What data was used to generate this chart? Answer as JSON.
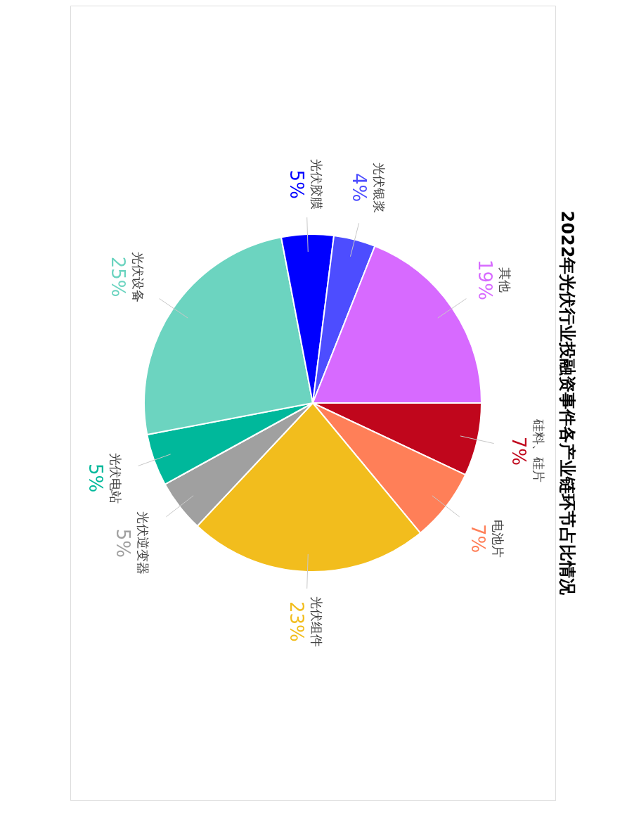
{
  "chart_data": {
    "type": "pie",
    "title": "2022年光伏行业投融资事件各产业链环节占比情况",
    "categories": [
      "硅料、硅片",
      "电池片",
      "光伏组件",
      "光伏逆变器",
      "光伏电站",
      "光伏设备",
      "光伏胶膜",
      "光伏银浆",
      "其他"
    ],
    "values": [
      7,
      7,
      23,
      5,
      5,
      25,
      5,
      4,
      19
    ],
    "value_labels": [
      "7%",
      "7%",
      "23%",
      "5%",
      "5%",
      "25%",
      "5%",
      "4%",
      "19%"
    ],
    "colors": [
      "#c0061c",
      "#ff7f58",
      "#f2bd1d",
      "#a0a0a0",
      "#00b89b",
      "#6cd4c0",
      "#0000ff",
      "#4d4dff",
      "#d76aff"
    ]
  }
}
